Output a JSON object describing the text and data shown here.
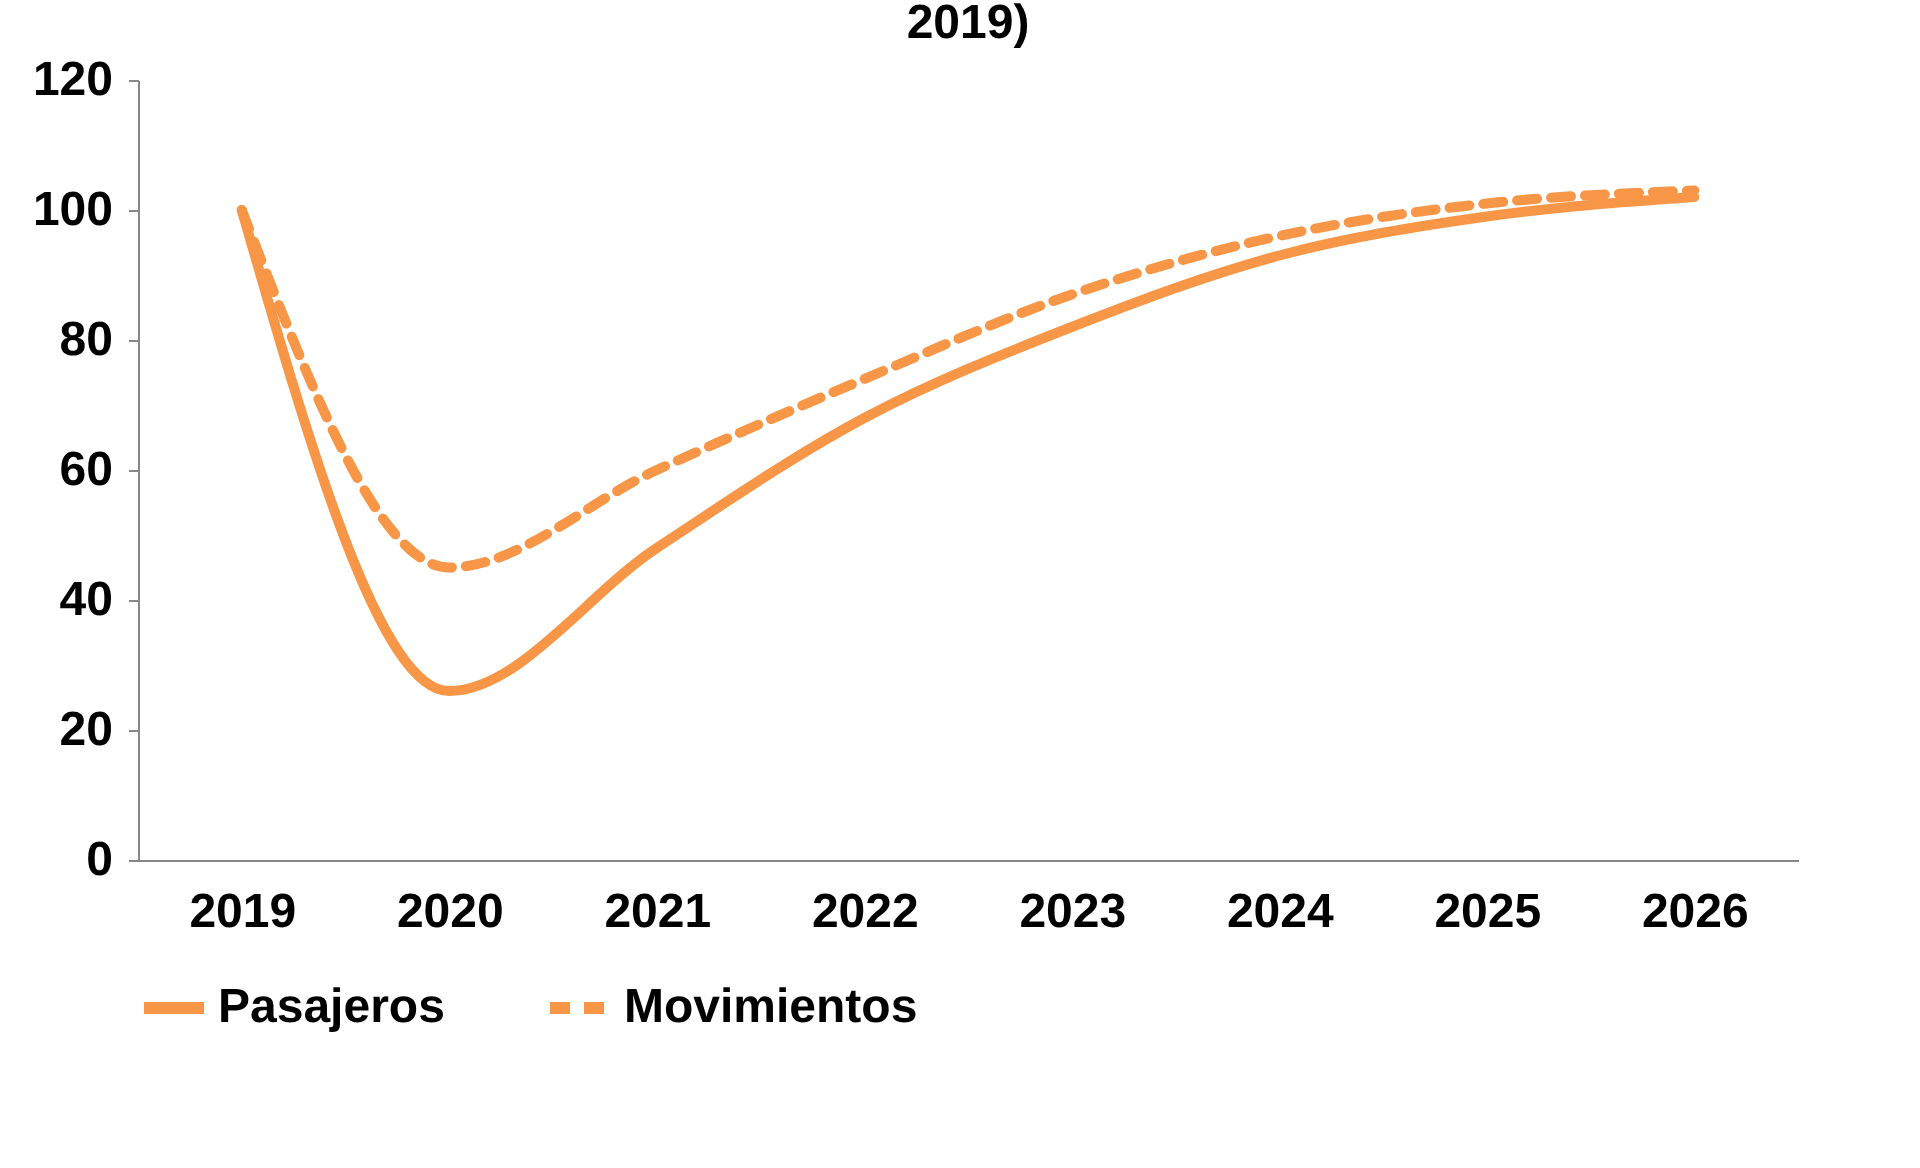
{
  "chart_data": {
    "type": "line",
    "title": "2019)",
    "categories": [
      "2019",
      "2020",
      "2021",
      "2022",
      "2023",
      "2024",
      "2025",
      "2026"
    ],
    "series": [
      {
        "name": "Pasajeros",
        "color": "#f79646",
        "line_style": "solid",
        "values": [
          100,
          26,
          48,
          68,
          82,
          93,
          99,
          102
        ]
      },
      {
        "name": "Movimientos",
        "color": "#f79646",
        "line_style": "dashed",
        "values": [
          100,
          45,
          60,
          74,
          87,
          96,
          101,
          103
        ]
      }
    ],
    "ylim": [
      0,
      120
    ],
    "yticks": [
      0,
      20,
      40,
      60,
      80,
      100,
      120
    ],
    "grid": false,
    "legend": "bottom",
    "marker": "none"
  }
}
